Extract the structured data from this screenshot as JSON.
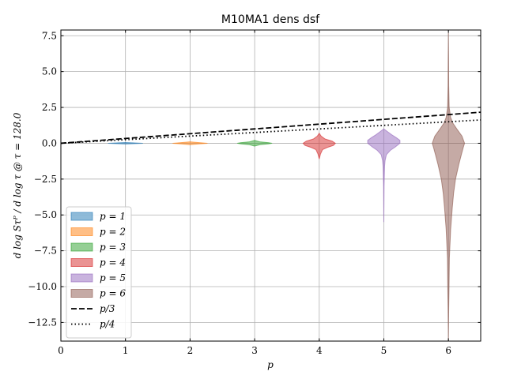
{
  "chart_data": {
    "type": "violin",
    "title": "M10MA1 dens dsf",
    "xlabel": "p",
    "ylabel": "d log Sτᴾ / d log τ @ τ = 128.0",
    "xlim": [
      0,
      6.5
    ],
    "ylim": [
      -13.8,
      7.9
    ],
    "x_ticks": [
      0,
      1,
      2,
      3,
      4,
      5,
      6
    ],
    "x_tick_labels": [
      "0",
      "1",
      "2",
      "3",
      "4",
      "5",
      "6"
    ],
    "y_ticks": [
      7.5,
      5.0,
      2.5,
      0.0,
      -2.5,
      -5.0,
      -7.5,
      -10.0,
      -12.5
    ],
    "y_tick_labels": [
      "7.5",
      "5.0",
      "2.5",
      "0.0",
      "−2.5",
      "−5.0",
      "−7.5",
      "−10.0",
      "−12.5"
    ],
    "grid": true,
    "legend_position": "lower-left",
    "series": [
      {
        "name": "p = 1",
        "x": 1,
        "color": "#1f77b4",
        "min": -0.05,
        "max": 0.05,
        "profile": [
          [
            -0.05,
            0.0
          ],
          [
            -0.03,
            0.12
          ],
          [
            0.0,
            0.27
          ],
          [
            0.03,
            0.12
          ],
          [
            0.05,
            0.0
          ]
        ]
      },
      {
        "name": "p = 2",
        "x": 2,
        "color": "#ff7f0e",
        "min": -0.1,
        "max": 0.1,
        "profile": [
          [
            -0.1,
            0.0
          ],
          [
            -0.05,
            0.12
          ],
          [
            0.0,
            0.27
          ],
          [
            0.05,
            0.12
          ],
          [
            0.1,
            0.0
          ]
        ]
      },
      {
        "name": "p = 3",
        "x": 3,
        "color": "#2ca02c",
        "min": -0.2,
        "max": 0.2,
        "profile": [
          [
            -0.2,
            0.0
          ],
          [
            -0.1,
            0.08
          ],
          [
            -0.04,
            0.22
          ],
          [
            0.0,
            0.27
          ],
          [
            0.04,
            0.22
          ],
          [
            0.1,
            0.08
          ],
          [
            0.2,
            0.0
          ]
        ]
      },
      {
        "name": "p = 4",
        "x": 4,
        "color": "#d62728",
        "min": -1.1,
        "max": 0.7,
        "profile": [
          [
            -1.1,
            0.0
          ],
          [
            -0.75,
            0.02
          ],
          [
            -0.45,
            0.05
          ],
          [
            -0.3,
            0.12
          ],
          [
            -0.15,
            0.22
          ],
          [
            0.0,
            0.25
          ],
          [
            0.15,
            0.2
          ],
          [
            0.3,
            0.09
          ],
          [
            0.5,
            0.03
          ],
          [
            0.7,
            0.0
          ]
        ]
      },
      {
        "name": "p = 5",
        "x": 5,
        "color": "#9467bd",
        "min": -5.5,
        "max": 1.0,
        "profile": [
          [
            -5.5,
            0.0
          ],
          [
            -3.0,
            0.004
          ],
          [
            -1.6,
            0.012
          ],
          [
            -1.2,
            0.02
          ],
          [
            -0.8,
            0.04
          ],
          [
            -0.5,
            0.1
          ],
          [
            -0.25,
            0.18
          ],
          [
            0.0,
            0.25
          ],
          [
            0.2,
            0.25
          ],
          [
            0.4,
            0.19
          ],
          [
            0.6,
            0.12
          ],
          [
            0.8,
            0.06
          ],
          [
            1.0,
            0.0
          ]
        ]
      },
      {
        "name": "p = 6",
        "x": 6,
        "color": "#8c564b",
        "min": -13.8,
        "max": 7.7,
        "profile": [
          [
            -13.8,
            0.0
          ],
          [
            -11.5,
            0.005
          ],
          [
            -10.0,
            0.01
          ],
          [
            -8.0,
            0.015
          ],
          [
            -6.0,
            0.035
          ],
          [
            -4.5,
            0.06
          ],
          [
            -3.5,
            0.08
          ],
          [
            -2.5,
            0.11
          ],
          [
            -1.5,
            0.16
          ],
          [
            -0.8,
            0.2
          ],
          [
            -0.3,
            0.23
          ],
          [
            0.0,
            0.25
          ],
          [
            0.5,
            0.21
          ],
          [
            1.0,
            0.13
          ],
          [
            1.4,
            0.07
          ],
          [
            1.8,
            0.035
          ],
          [
            2.5,
            0.012
          ],
          [
            4.0,
            0.005
          ],
          [
            6.0,
            0.003
          ],
          [
            7.7,
            0.0
          ]
        ]
      }
    ],
    "reference_lines": [
      {
        "name": "p/3",
        "style": "dashed",
        "slope": 0.3333
      },
      {
        "name": "p/4",
        "style": "dotted",
        "slope": 0.25
      }
    ]
  }
}
